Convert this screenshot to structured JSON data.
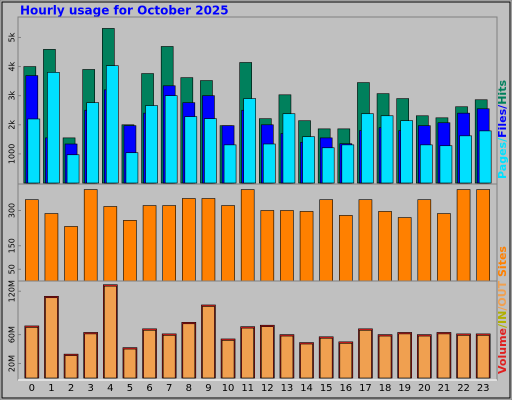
{
  "chart_data": [
    {
      "type": "bar",
      "title": "Hourly usage for October 2025",
      "categories": [
        "0",
        "1",
        "2",
        "3",
        "4",
        "5",
        "6",
        "7",
        "8",
        "9",
        "10",
        "11",
        "12",
        "13",
        "14",
        "15",
        "16",
        "17",
        "18",
        "19",
        "20",
        "21",
        "22",
        "23"
      ],
      "series": [
        {
          "name": "Hits",
          "color": "#00805c",
          "values": [
            4000,
            4590,
            1550,
            3900,
            5310,
            2000,
            3760,
            4690,
            3620,
            3520,
            1970,
            4140,
            2210,
            3030,
            2140,
            1860,
            1860,
            3450,
            3070,
            2900,
            2310,
            2240,
            2620,
            2860
          ]
        },
        {
          "name": "Files",
          "color": "#0000ff",
          "values": [
            3690,
            1550,
            1340,
            2500,
            3200,
            1970,
            2400,
            3340,
            2760,
            3000,
            1970,
            2500,
            2000,
            1700,
            1400,
            1550,
            1350,
            1800,
            1900,
            1800,
            1970,
            2070,
            2400,
            2550
          ]
        },
        {
          "name": "Pages",
          "color": "#00e0ff",
          "values": [
            2200,
            3800,
            970,
            2760,
            4030,
            1040,
            2660,
            3000,
            2280,
            2210,
            1310,
            2900,
            1340,
            2380,
            1590,
            1210,
            1310,
            2380,
            2310,
            2140,
            1310,
            1280,
            1620,
            1790
          ]
        }
      ],
      "legend_separator": "/",
      "ylim": [
        0,
        5600
      ],
      "yticks": [
        {
          "value": 1000,
          "label": "1000"
        },
        {
          "value": 2000,
          "label": "2k"
        },
        {
          "value": 3000,
          "label": "3k"
        },
        {
          "value": 4000,
          "label": "4k"
        },
        {
          "value": 5000,
          "label": "5k"
        }
      ]
    },
    {
      "type": "bar",
      "categories": [
        "0",
        "1",
        "2",
        "3",
        "4",
        "5",
        "6",
        "7",
        "8",
        "9",
        "10",
        "11",
        "12",
        "13",
        "14",
        "15",
        "16",
        "17",
        "18",
        "19",
        "20",
        "21",
        "22",
        "23"
      ],
      "series": [
        {
          "name": "Sites",
          "color": "#ff8000",
          "values": [
            346,
            287,
            232,
            389,
            317,
            258,
            321,
            321,
            351,
            351,
            321,
            389,
            300,
            300,
            296,
            346,
            279,
            346,
            296,
            270,
            346,
            287,
            389,
            389
          ]
        }
      ],
      "ylim": [
        0,
        400
      ],
      "yticks": [
        50,
        150,
        300
      ]
    },
    {
      "type": "bar",
      "categories": [
        "0",
        "1",
        "2",
        "3",
        "4",
        "5",
        "6",
        "7",
        "8",
        "9",
        "10",
        "11",
        "12",
        "13",
        "14",
        "15",
        "16",
        "17",
        "18",
        "19",
        "20",
        "21",
        "22",
        "23"
      ],
      "series": [
        {
          "name": "Volume",
          "color": "#e02020",
          "values": [
            72,
            113,
            33,
            63,
            129,
            42,
            68,
            61,
            77,
            101,
            54,
            71,
            73,
            60,
            49,
            57,
            50,
            68,
            60,
            63,
            60,
            63,
            61,
            61
          ]
        },
        {
          "name": "OUT",
          "color": "#f0a050",
          "values": [
            70,
            111,
            31,
            61,
            127,
            40,
            66,
            59,
            75,
            99,
            52,
            69,
            71,
            58,
            47,
            55,
            48,
            66,
            58,
            61,
            58,
            61,
            59,
            59
          ]
        }
      ],
      "in_name": "IN",
      "in_color": "#b0b000",
      "legend_separator": "/",
      "ylim": [
        0,
        130
      ],
      "yticks": [
        {
          "value": 20,
          "label": "20M"
        },
        {
          "value": 60,
          "label": "60M"
        },
        {
          "value": 120,
          "label": "120M"
        }
      ]
    }
  ]
}
